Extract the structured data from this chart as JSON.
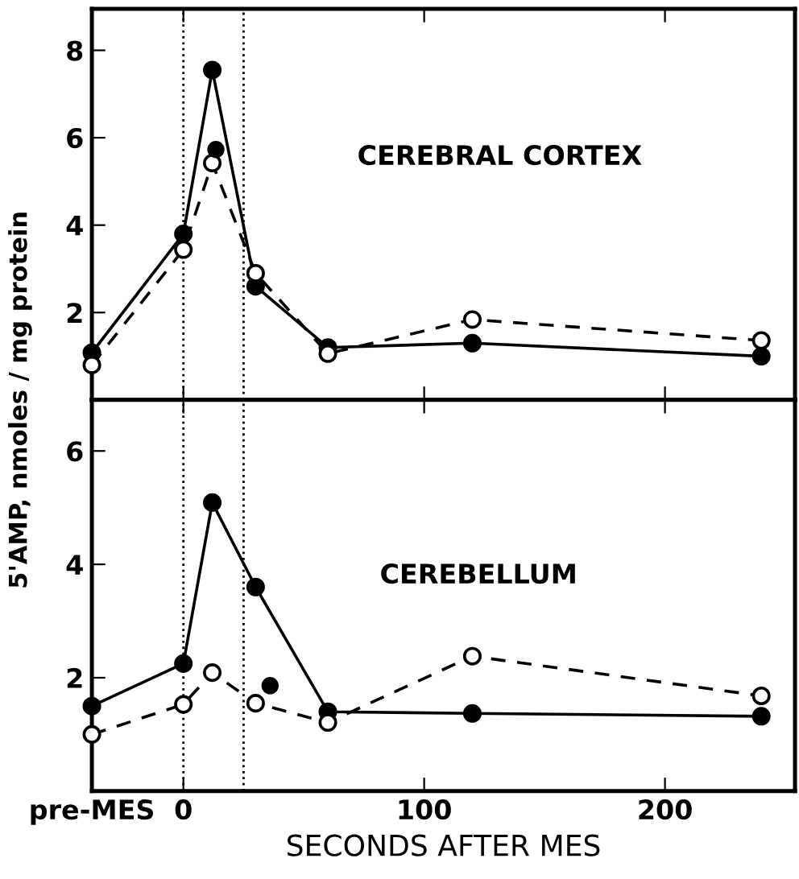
{
  "chart_data": [
    {
      "type": "line",
      "ylabel": "5'AMP, nmoles / mg protein",
      "annotations": [
        "CEREBRAL CORTEX"
      ],
      "xlim": [
        -38,
        254
      ],
      "xticks": [
        0,
        100,
        200
      ],
      "ylim": [
        0,
        8.95
      ],
      "yticks": [
        2,
        4,
        6,
        8
      ],
      "tick_labels": "y",
      "grid": false,
      "legend": false,
      "ref_lines": [
        {
          "axis": "x",
          "value": 0,
          "line_style": "dotted",
          "color": "#000000"
        },
        {
          "axis": "x",
          "value": 25,
          "line_style": "dotted",
          "color": "#000000"
        }
      ],
      "series": [
        {
          "color": "#000000",
          "line_style": "solid",
          "marker": "circle",
          "x": [
            -38,
            0,
            12,
            30,
            60,
            120,
            240
          ],
          "values": [
            1.08,
            3.8,
            7.55,
            2.6,
            1.2,
            1.3,
            1.0
          ]
        },
        {
          "color": "#000000",
          "line_style": "dashed",
          "marker": "circle",
          "x": [
            -38,
            0,
            12,
            30,
            60,
            120,
            240
          ],
          "values": [
            0.8,
            3.44,
            5.42,
            2.9,
            1.06,
            1.84,
            1.36
          ]
        },
        {
          "type": "scatter",
          "color": "#000000",
          "marker": "circle",
          "x": [
            13.5
          ],
          "values": [
            5.73
          ]
        }
      ]
    },
    {
      "type": "line",
      "xlabel": "SECONDS AFTER MES",
      "annotations": [
        "CEREBELLUM"
      ],
      "xlim": [
        -38,
        254
      ],
      "xticks": [
        {
          "value": -38,
          "label": "pre-MES"
        },
        0,
        100,
        200
      ],
      "ylim": [
        0,
        6.9
      ],
      "yticks": [
        2,
        4,
        6
      ],
      "grid": false,
      "legend": false,
      "ref_lines": [
        {
          "axis": "x",
          "value": 0,
          "line_style": "dotted",
          "color": "#000000"
        },
        {
          "axis": "x",
          "value": 25,
          "line_style": "dotted",
          "color": "#000000"
        }
      ],
      "series": [
        {
          "color": "#000000",
          "line_style": "solid",
          "marker": "circle",
          "x": [
            -38,
            0,
            12,
            30,
            60,
            120,
            240
          ],
          "values": [
            1.5,
            2.25,
            5.09,
            3.6,
            1.4,
            1.37,
            1.32
          ]
        },
        {
          "color": "#000000",
          "line_style": "dashed",
          "marker": "circle",
          "x": [
            -38,
            0,
            12,
            30,
            60,
            120,
            240
          ],
          "values": [
            1.0,
            1.53,
            2.09,
            1.55,
            1.21,
            2.38,
            1.68
          ]
        },
        {
          "type": "scatter",
          "color": "#000000",
          "marker": "circle",
          "x": [
            36
          ],
          "values": [
            1.86
          ]
        }
      ]
    }
  ]
}
